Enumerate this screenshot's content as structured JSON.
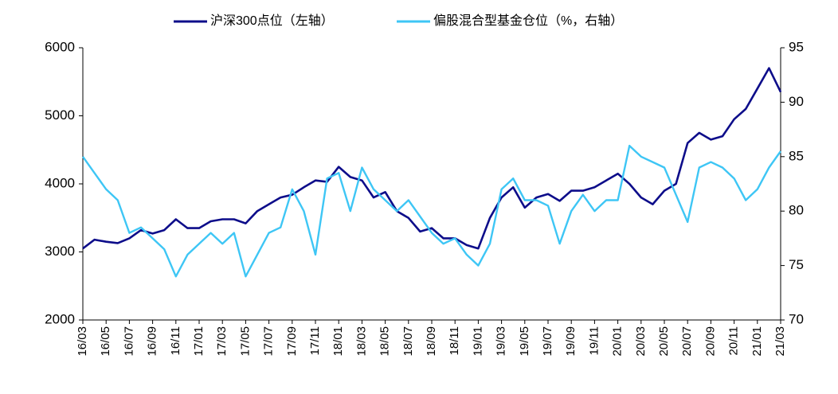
{
  "chart_data": {
    "type": "line",
    "categories": [
      "16/03",
      null,
      "16/05",
      null,
      "16/07",
      null,
      "16/09",
      null,
      "16/11",
      null,
      "17/01",
      null,
      "17/03",
      null,
      "17/05",
      null,
      "17/07",
      null,
      "17/09",
      null,
      "17/11",
      null,
      "18/01",
      null,
      "18/03",
      null,
      "18/05",
      null,
      "18/07",
      null,
      "18/09",
      null,
      "18/11",
      null,
      "19/01",
      null,
      "19/03",
      null,
      "19/05",
      null,
      "19/07",
      null,
      "19/09",
      null,
      "19/11",
      null,
      "20/01",
      null,
      "20/03",
      null,
      "20/05",
      null,
      "20/07",
      null,
      "20/09",
      null,
      "20/11",
      null,
      "21/01",
      null,
      "21/03"
    ],
    "series": [
      {
        "name": "沪深300点位（左轴）",
        "color": "#0d0d8a",
        "axis": "y",
        "values": [
          3050,
          3180,
          3150,
          3130,
          3200,
          3320,
          3270,
          3320,
          3480,
          3350,
          3350,
          3450,
          3480,
          3480,
          3420,
          3600,
          3700,
          3800,
          3840,
          3950,
          4050,
          4030,
          4250,
          4100,
          4050,
          3800,
          3880,
          3600,
          3500,
          3300,
          3350,
          3200,
          3200,
          3100,
          3050,
          3500,
          3800,
          3950,
          3650,
          3800,
          3850,
          3750,
          3900,
          3900,
          3950,
          4050,
          4150,
          4000,
          3800,
          3700,
          3900,
          4000,
          4600,
          4750,
          4650,
          4700,
          4950,
          5100,
          5400,
          5700,
          5350
        ]
      },
      {
        "name": "偏股混合型基金仓位（%，右轴）",
        "color": "#3ec6f5",
        "axis": "y2",
        "values": [
          85,
          83.5,
          82,
          81,
          78,
          78.5,
          77.5,
          76.5,
          74,
          76,
          77,
          78,
          77,
          78,
          74,
          76,
          78,
          78.5,
          82,
          80,
          76,
          83,
          83.5,
          80,
          84,
          82,
          81,
          80,
          81,
          79.5,
          78,
          77,
          77.5,
          76,
          75,
          77,
          82,
          83,
          81,
          81,
          80.5,
          77,
          80,
          81.5,
          80,
          81,
          81,
          86,
          85,
          84.5,
          84,
          81.5,
          79,
          84,
          84.5,
          84,
          83,
          81,
          82,
          84,
          85.5
        ]
      }
    ],
    "ylim": [
      2000,
      6000
    ],
    "yticks": [
      2000,
      3000,
      4000,
      5000,
      6000
    ],
    "y2lim": [
      70,
      95
    ],
    "y2ticks": [
      70,
      75,
      80,
      85,
      90,
      95
    ],
    "legend": "top",
    "grid": false
  }
}
